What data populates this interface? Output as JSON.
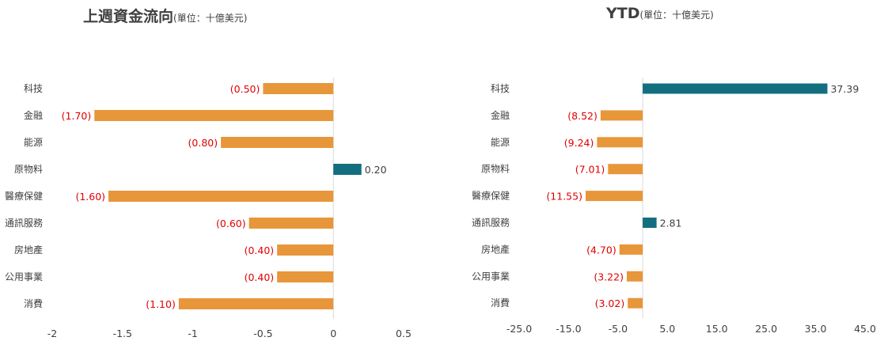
{
  "colors": {
    "positive": "#136E80",
    "negative": "#E8963A",
    "negative_label": "#E00000",
    "positive_label": "#404040",
    "axis": "#D9D9D9"
  },
  "chart_data": [
    {
      "type": "bar",
      "orientation": "horizontal",
      "title": "上週資金流向",
      "subtitle": "(單位：十億美元)",
      "categories": [
        "科技",
        "金融",
        "能源",
        "原物料",
        "醫療保健",
        "通訊服務",
        "房地產",
        "公用事業",
        "消費"
      ],
      "values": [
        -0.5,
        -1.7,
        -0.8,
        0.2,
        -1.6,
        -0.6,
        -0.4,
        -0.4,
        -1.1
      ],
      "data_labels": [
        "(0.50)",
        "(1.70)",
        "(0.80)",
        "0.20",
        "(1.60)",
        "(0.60)",
        "(0.40)",
        "(0.40)",
        "(1.10)"
      ],
      "xlim": [
        -2,
        0.5
      ],
      "xticks": [
        -2,
        -1.5,
        -1,
        -0.5,
        0,
        0.5
      ],
      "xtick_labels": [
        "-2",
        "-1.5",
        "-1",
        "-0.5",
        "0",
        "0.5"
      ],
      "grid": false,
      "legend": "none"
    },
    {
      "type": "bar",
      "orientation": "horizontal",
      "title": "YTD",
      "subtitle": "(單位：十億美元)",
      "categories": [
        "科技",
        "金融",
        "能源",
        "原物料",
        "醫療保健",
        "通訊服務",
        "房地產",
        "公用事業",
        "消費"
      ],
      "values": [
        37.39,
        -8.52,
        -9.24,
        -7.01,
        -11.55,
        2.81,
        -4.7,
        -3.22,
        -3.02
      ],
      "data_labels": [
        "37.39",
        "(8.52)",
        "(9.24)",
        "(7.01)",
        "(11.55)",
        "2.81",
        "(4.70)",
        "(3.22)",
        "(3.02)"
      ],
      "xlim": [
        -25,
        45
      ],
      "xticks": [
        -25,
        -15,
        -5,
        5,
        15,
        25,
        35,
        45
      ],
      "xtick_labels": [
        "-25.0",
        "-15.0",
        "-5.0",
        "5.0",
        "15.0",
        "25.0",
        "35.0",
        "45.0"
      ],
      "grid": false,
      "legend": "none"
    }
  ]
}
